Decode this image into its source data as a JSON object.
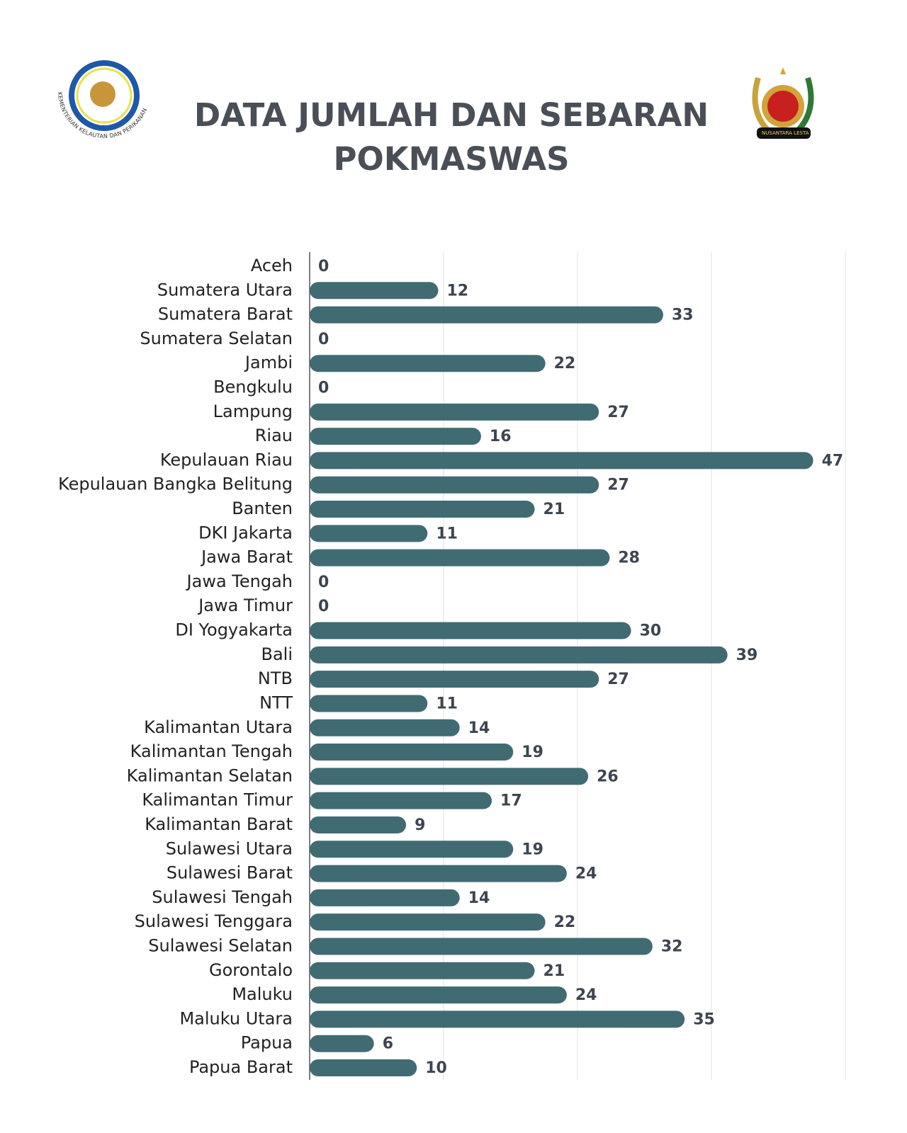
{
  "chart_data": {
    "type": "bar",
    "orientation": "horizontal",
    "title": "DATA JUMLAH DAN SEBARAN POKMASWAS",
    "logos": {
      "left": "KEMENTERIAN KELAUTAN DAN PERIKANAN",
      "right": "NUSANTARA LESTARI JAYA"
    },
    "categories": [
      "Aceh",
      "Sumatera Utara",
      "Sumatera Barat",
      "Sumatera Selatan",
      "Jambi",
      "Bengkulu",
      "Lampung",
      "Riau",
      "Kepulauan Riau",
      "Kepulauan Bangka Belitung",
      "Banten",
      "DKI Jakarta",
      "Jawa Barat",
      "Jawa Tengah",
      "Jawa Timur",
      "DI Yogyakarta",
      "Bali",
      "NTB",
      "NTT",
      "Kalimantan Utara",
      "Kalimantan Tengah",
      "Kalimantan Selatan",
      "Kalimantan Timur",
      "Kalimantan Barat",
      "Sulawesi Utara",
      "Sulawesi Barat",
      "Sulawesi Tengah",
      "Sulawesi Tenggara",
      "Sulawesi Selatan",
      "Gorontalo",
      "Maluku",
      "Maluku Utara",
      "Papua",
      "Papua Barat"
    ],
    "values": [
      0,
      12,
      33,
      0,
      22,
      0,
      27,
      16,
      47,
      27,
      21,
      11,
      28,
      0,
      0,
      30,
      39,
      27,
      11,
      14,
      19,
      26,
      17,
      9,
      19,
      24,
      14,
      22,
      32,
      21,
      24,
      35,
      6,
      10
    ],
    "color": "#416b73",
    "xlim": [
      0,
      50
    ],
    "xticks": [
      0,
      12.5,
      25,
      37.5,
      50
    ],
    "grid": true
  }
}
